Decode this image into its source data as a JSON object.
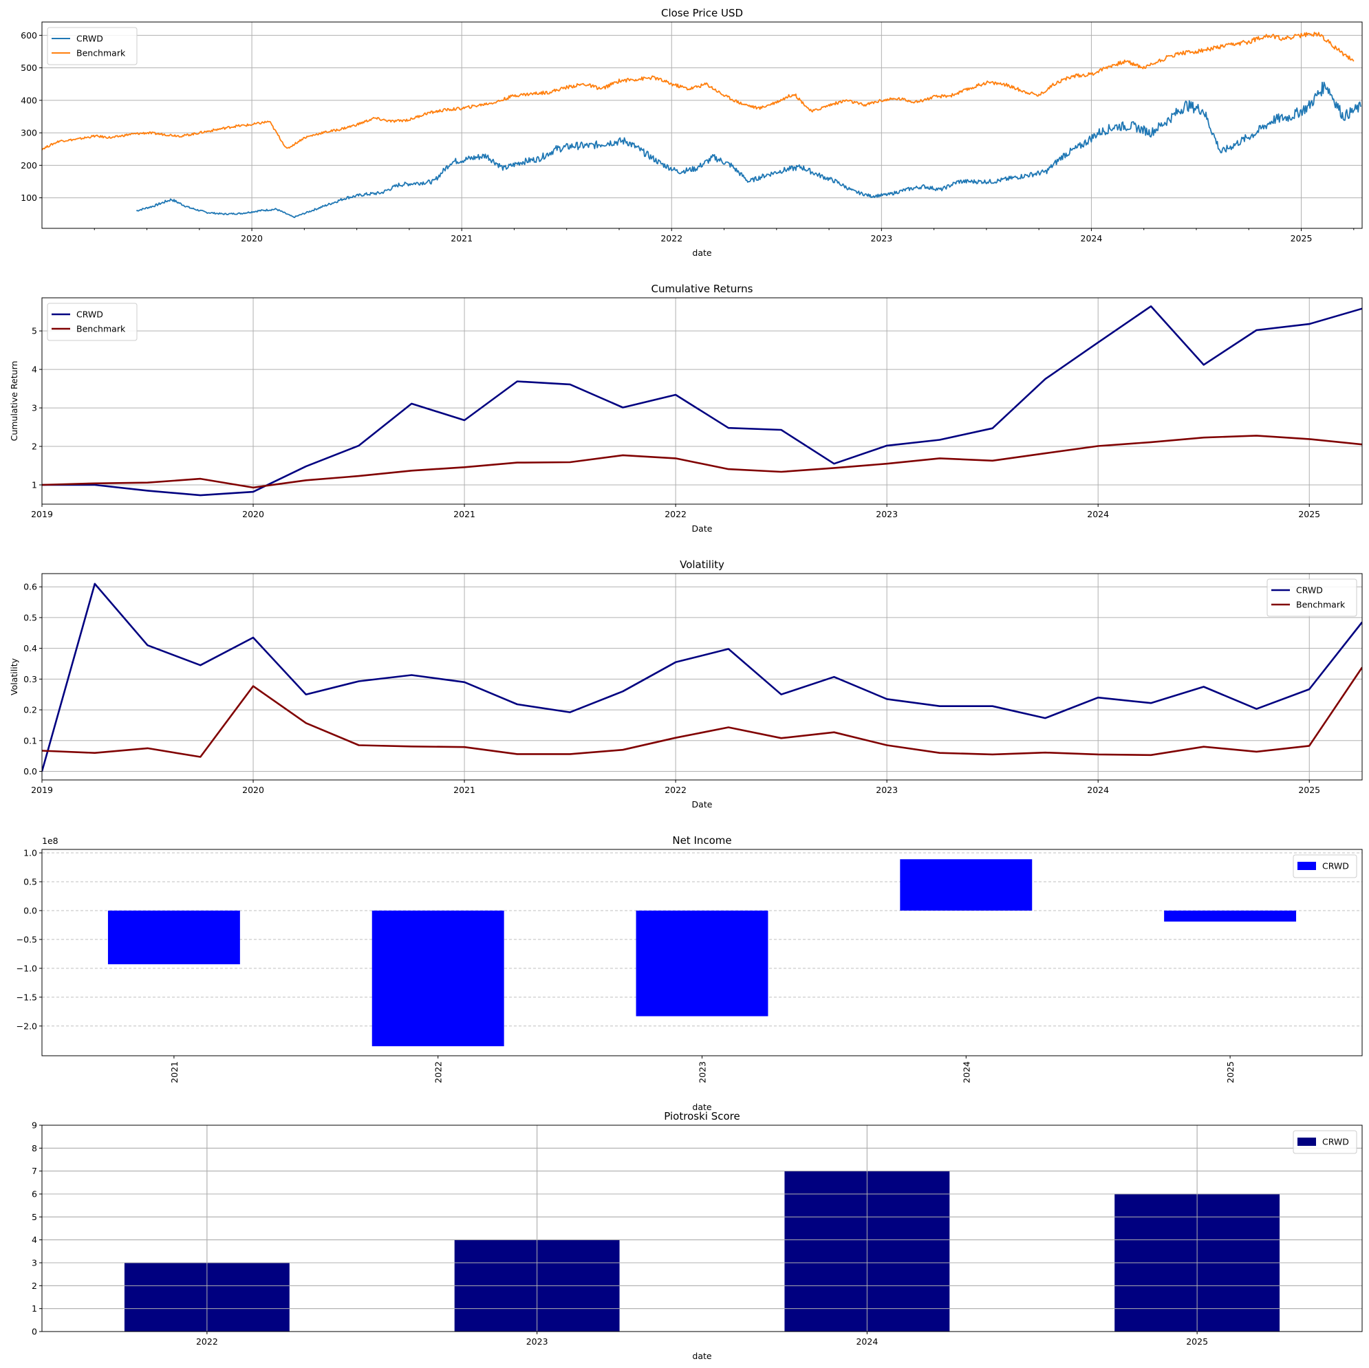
{
  "chart_data": [
    {
      "type": "line",
      "title": "Close Price USD",
      "xlabel": "date",
      "ylabel": "",
      "xlim": [
        2019.0,
        2025.29
      ],
      "ylim": [
        6,
        641
      ],
      "xticks": [
        "2020",
        "2021",
        "2022",
        "2023",
        "2024",
        "2025"
      ],
      "yticks": [
        "100",
        "200",
        "300",
        "400",
        "500",
        "600"
      ],
      "grid": true,
      "legend": "upper-left",
      "series": [
        {
          "name": "CRWD",
          "color": "#1f77b4",
          "start": 2019.45,
          "step_months": 1,
          "values": [
            60,
            75,
            95,
            70,
            55,
            50,
            52,
            60,
            65,
            40,
            60,
            80,
            100,
            110,
            115,
            140,
            145,
            150,
            210,
            220,
            230,
            190,
            210,
            220,
            250,
            260,
            260,
            270,
            275,
            240,
            205,
            180,
            190,
            225,
            200,
            150,
            170,
            185,
            195,
            170,
            150,
            120,
            105,
            110,
            125,
            135,
            125,
            150,
            150,
            150,
            160,
            170,
            180,
            230,
            260,
            300,
            320,
            320,
            300,
            340,
            385,
            370,
            240,
            270,
            300,
            340,
            350,
            380,
            450,
            350,
            380
          ]
        },
        {
          "name": "Benchmark",
          "color": "#ff7f0e",
          "start": 2019.0,
          "step_months": 1,
          "values": [
            250,
            275,
            280,
            290,
            285,
            295,
            300,
            295,
            290,
            300,
            310,
            320,
            325,
            335,
            250,
            285,
            300,
            310,
            325,
            345,
            335,
            340,
            360,
            370,
            375,
            385,
            395,
            415,
            420,
            425,
            440,
            450,
            435,
            460,
            465,
            470,
            450,
            435,
            450,
            415,
            390,
            375,
            395,
            420,
            365,
            385,
            400,
            385,
            400,
            405,
            395,
            410,
            415,
            435,
            455,
            450,
            430,
            415,
            455,
            475,
            480,
            505,
            520,
            500,
            525,
            545,
            550,
            560,
            570,
            580,
            600,
            590,
            600,
            605,
            560,
            520
          ]
        }
      ]
    },
    {
      "type": "line",
      "title": "Cumulative Returns",
      "xlabel": "Date",
      "ylabel": "Cumulative Return",
      "xlim": [
        2019.0,
        2025.25
      ],
      "ylim": [
        0.5,
        5.86
      ],
      "xticks": [
        "2019",
        "2020",
        "2021",
        "2022",
        "2023",
        "2024",
        "2025"
      ],
      "yticks": [
        "1",
        "2",
        "3",
        "4",
        "5"
      ],
      "grid": true,
      "legend": "upper-left",
      "series": [
        {
          "name": "CRWD",
          "color": "#000080",
          "start": 2019.0,
          "step_months": 3,
          "values": [
            1.0,
            1.0,
            0.85,
            0.73,
            0.82,
            1.48,
            2.02,
            3.11,
            2.68,
            3.69,
            3.61,
            3.01,
            3.34,
            2.48,
            2.43,
            1.55,
            2.02,
            2.17,
            2.47,
            3.75,
            4.7,
            5.64,
            4.12,
            5.02,
            5.18,
            5.58
          ]
        },
        {
          "name": "Benchmark",
          "color": "#800000",
          "start": 2019.0,
          "step_months": 3,
          "values": [
            1.0,
            1.04,
            1.06,
            1.16,
            0.93,
            1.12,
            1.23,
            1.37,
            1.46,
            1.58,
            1.59,
            1.77,
            1.69,
            1.41,
            1.34,
            1.44,
            1.55,
            1.69,
            1.63,
            1.82,
            2.01,
            2.11,
            2.23,
            2.28,
            2.19,
            2.05
          ]
        }
      ]
    },
    {
      "type": "line",
      "title": "Volatility",
      "xlabel": "Date",
      "ylabel": "Volatility",
      "xlim": [
        2019.0,
        2025.25
      ],
      "ylim": [
        -0.028,
        0.643
      ],
      "xticks": [
        "2019",
        "2020",
        "2021",
        "2022",
        "2023",
        "2024",
        "2025"
      ],
      "yticks": [
        "0.0",
        "0.1",
        "0.2",
        "0.3",
        "0.4",
        "0.5",
        "0.6"
      ],
      "grid": true,
      "legend": "upper-right",
      "series": [
        {
          "name": "CRWD",
          "color": "#000080",
          "start": 2019.0,
          "step_months": 3,
          "values": [
            0,
            0.61,
            0.41,
            0.345,
            0.435,
            0.25,
            0.293,
            0.313,
            0.29,
            0.218,
            0.192,
            0.26,
            0.355,
            0.398,
            0.25,
            0.307,
            0.235,
            0.212,
            0.212,
            0.173,
            0.24,
            0.222,
            0.275,
            0.203,
            0.267,
            0.485
          ]
        },
        {
          "name": "Benchmark",
          "color": "#800000",
          "start": 2019.0,
          "step_months": 3,
          "values": [
            0.067,
            0.06,
            0.075,
            0.047,
            0.277,
            0.157,
            0.085,
            0.081,
            0.079,
            0.056,
            0.056,
            0.07,
            0.109,
            0.143,
            0.108,
            0.127,
            0.085,
            0.06,
            0.055,
            0.061,
            0.055,
            0.053,
            0.08,
            0.064,
            0.083,
            0.338
          ]
        }
      ]
    },
    {
      "type": "bar",
      "title": "Net Income",
      "xlabel": "date",
      "ylabel": "",
      "offset_label": "1e8",
      "categories": [
        "2021",
        "2022",
        "2023",
        "2024",
        "2025"
      ],
      "ylim": [
        -2.515,
        1.06
      ],
      "yticks": [
        "−2.0",
        "−1.5",
        "−1.0",
        "−0.5",
        "0.0",
        "0.5",
        "1.0"
      ],
      "grid": "y-dashed",
      "legend": "upper-right",
      "series": [
        {
          "name": "CRWD",
          "color": "#0000ff",
          "values": [
            -0.93,
            -2.35,
            -1.83,
            0.89,
            -0.19
          ],
          "unit_scale": 100000000.0
        }
      ]
    },
    {
      "type": "bar",
      "title": "Piotroski Score",
      "xlabel": "date",
      "ylabel": "",
      "categories": [
        "2022",
        "2023",
        "2024",
        "2025"
      ],
      "ylim": [
        0,
        9
      ],
      "yticks": [
        "0",
        "1",
        "2",
        "3",
        "4",
        "5",
        "6",
        "7",
        "8",
        "9"
      ],
      "grid": true,
      "legend": "upper-right",
      "series": [
        {
          "name": "CRWD",
          "color": "#000080",
          "values": [
            3,
            4,
            7,
            6
          ]
        }
      ]
    }
  ]
}
